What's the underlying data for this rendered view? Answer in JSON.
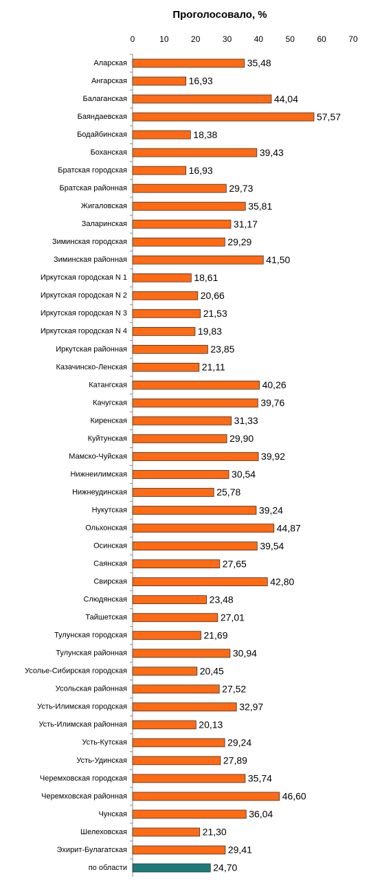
{
  "chart_data": {
    "type": "barh",
    "title": "Проголосовало, %",
    "categories": [
      "Аларская",
      "Ангарская",
      "Балаганская",
      "Баяндаевская",
      "Бодайбинская",
      "Боханская",
      "Братская городская",
      "Братская районная",
      "Жигаловская",
      "Заларинская",
      "Зиминская городская",
      "Зиминская районная",
      "Иркутская городская N 1",
      "Иркутская городская N 2",
      "Иркутская городская N 3",
      "Иркутская городская N 4",
      "Иркутская районная",
      "Казачинско-Ленская",
      "Катангская",
      "Качугская",
      "Киренская",
      "Куйтунская",
      "Мамско-Чуйская",
      "Нижнеилимская",
      "Нижнеудинская",
      "Нукутская",
      "Ольхонская",
      "Осинская",
      "Саянская",
      "Свирская",
      "Слюдянская",
      "Тайшетская",
      "Тулунская городская",
      "Тулунская районная",
      "Усолье-Сибирская городская",
      "Усольская районная",
      "Усть-Илимская городская",
      "Усть-Илимская районная",
      "Усть-Кутская",
      "Усть-Удинская",
      "Черемховская городская",
      "Черемховская районная",
      "Чунская",
      "Шелеховская",
      "Эхирит-Булагатская",
      "по области"
    ],
    "values": [
      35.48,
      16.93,
      44.04,
      57.57,
      18.38,
      39.43,
      16.93,
      29.73,
      35.81,
      31.17,
      29.29,
      41.5,
      18.61,
      20.66,
      21.53,
      19.83,
      23.85,
      21.11,
      40.26,
      39.76,
      31.33,
      29.9,
      39.92,
      30.54,
      25.78,
      39.24,
      44.87,
      39.54,
      27.65,
      42.8,
      23.48,
      27.01,
      21.69,
      30.94,
      20.45,
      27.52,
      32.97,
      20.13,
      29.24,
      27.89,
      35.74,
      46.6,
      36.04,
      21.3,
      29.41,
      24.7
    ],
    "value_labels": [
      "35,48",
      "16,93",
      "44,04",
      "57,57",
      "18,38",
      "39,43",
      "16,93",
      "29,73",
      "35,81",
      "31,17",
      "29,29",
      "41,50",
      "18,61",
      "20,66",
      "21,53",
      "19,83",
      "23,85",
      "21,11",
      "40,26",
      "39,76",
      "31,33",
      "29,90",
      "39,92",
      "30,54",
      "25,78",
      "39,24",
      "44,87",
      "39,54",
      "27,65",
      "42,80",
      "23,48",
      "27,01",
      "21,69",
      "30,94",
      "20,45",
      "27,52",
      "32,97",
      "20,13",
      "29,24",
      "27,89",
      "35,74",
      "46,60",
      "36,04",
      "21,30",
      "29,41",
      "24,70"
    ],
    "colors": [
      "#ff6a13",
      "#ff6a13",
      "#ff6a13",
      "#ff6a13",
      "#ff6a13",
      "#ff6a13",
      "#ff6a13",
      "#ff6a13",
      "#ff6a13",
      "#ff6a13",
      "#ff6a13",
      "#ff6a13",
      "#ff6a13",
      "#ff6a13",
      "#ff6a13",
      "#ff6a13",
      "#ff6a13",
      "#ff6a13",
      "#ff6a13",
      "#ff6a13",
      "#ff6a13",
      "#ff6a13",
      "#ff6a13",
      "#ff6a13",
      "#ff6a13",
      "#ff6a13",
      "#ff6a13",
      "#ff6a13",
      "#ff6a13",
      "#ff6a13",
      "#ff6a13",
      "#ff6a13",
      "#ff6a13",
      "#ff6a13",
      "#ff6a13",
      "#ff6a13",
      "#ff6a13",
      "#ff6a13",
      "#ff6a13",
      "#ff6a13",
      "#ff6a13",
      "#ff6a13",
      "#ff6a13",
      "#ff6a13",
      "#ff6a13",
      "#1b7b78"
    ],
    "xlim": [
      0,
      70
    ],
    "xticks": [
      0,
      10,
      20,
      30,
      40,
      50,
      60,
      70
    ]
  }
}
